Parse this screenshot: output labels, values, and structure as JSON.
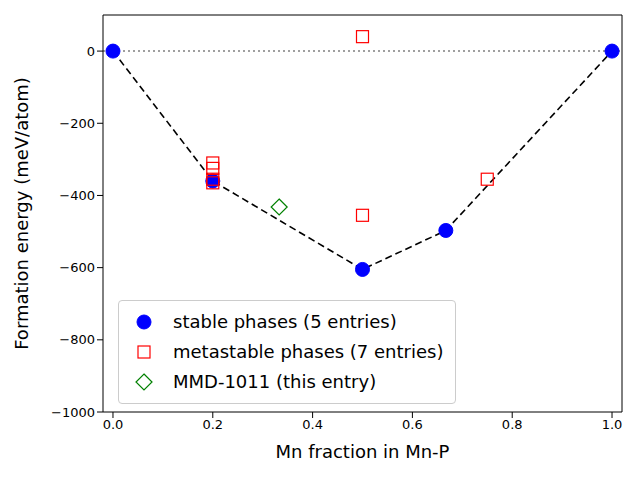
{
  "chart_data": {
    "type": "scatter",
    "x_label": "Mn fraction in Mn-P",
    "y_label": "Formation energy (meV/atom)",
    "xlim": [
      -0.02,
      1.02
    ],
    "ylim": [
      -1000,
      100
    ],
    "xticks": [
      {
        "value": 0,
        "label": "0.0"
      },
      {
        "value": 0.2,
        "label": "0.2"
      },
      {
        "value": 0.4,
        "label": "0.4"
      },
      {
        "value": 0.6,
        "label": "0.6"
      },
      {
        "value": 0.8,
        "label": "0.8"
      },
      {
        "value": 1,
        "label": "1.0"
      }
    ],
    "yticks": [
      {
        "value": -1000,
        "label": "−1000"
      },
      {
        "value": -800,
        "label": "−800"
      },
      {
        "value": -600,
        "label": "−600"
      },
      {
        "value": -400,
        "label": "−400"
      },
      {
        "value": -200,
        "label": "−200"
      },
      0
    ],
    "baseline": 0,
    "legend": "lower left",
    "series": [
      {
        "name": "stable phases (5 entries)",
        "color": "#0000ff",
        "marker": "circle",
        "line_style": "dashed",
        "x": [
          0,
          0.2,
          0.5,
          0.667,
          1
        ],
        "y": [
          0,
          -360,
          -605,
          -497,
          0
        ]
      },
      {
        "name": "metastable phases (7 entries)",
        "color": "#ff0000",
        "marker": "square",
        "x": [
          0.2,
          0.2,
          0.2,
          0.2,
          0.5,
          0.5,
          0.75
        ],
        "y": [
          -310,
          -325,
          -355,
          -365,
          40,
          -455,
          -355
        ]
      },
      {
        "name": "MMD-1011 (this entry)",
        "color": "#008000",
        "marker": "diamond",
        "x": [
          0.333
        ],
        "y": [
          -432
        ]
      }
    ]
  }
}
